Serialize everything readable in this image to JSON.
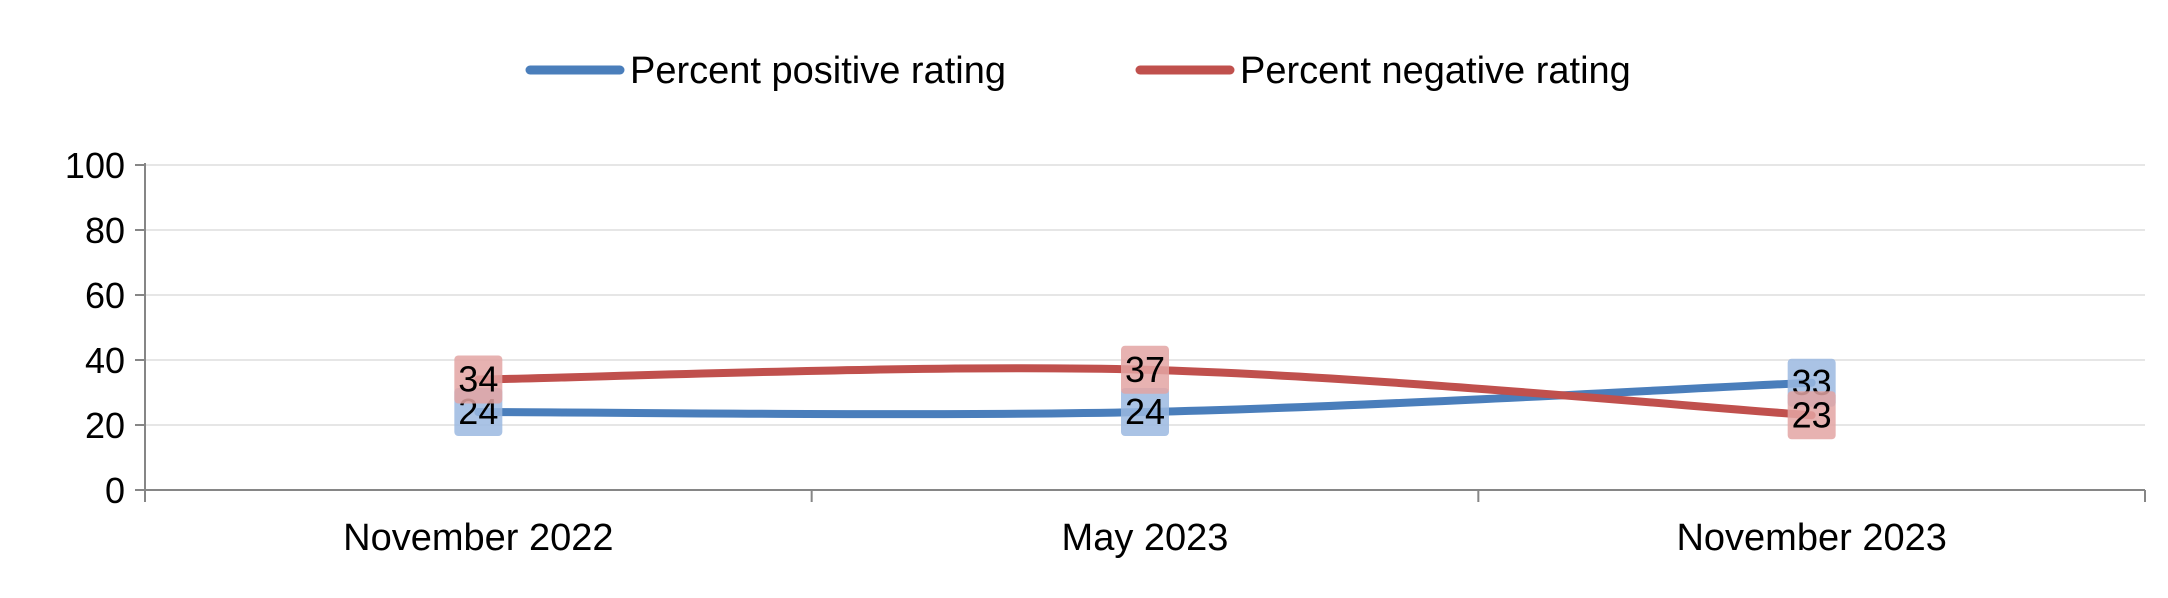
{
  "chart_data": {
    "type": "line",
    "title": "",
    "xlabel": "",
    "ylabel": "",
    "categories": [
      "November 2022",
      "May 2023",
      "November 2023"
    ],
    "ylim": [
      0,
      100
    ],
    "yticks": [
      0,
      20,
      40,
      60,
      80,
      100
    ],
    "grid": true,
    "legend_position": "top",
    "smooth_lines": true,
    "series": [
      {
        "name": "Percent positive rating",
        "values": [
          24,
          24,
          33
        ],
        "color": "#4a7ebb",
        "label_bg": "#9bb9e0"
      },
      {
        "name": "Percent negative rating",
        "values": [
          34,
          37,
          23
        ],
        "color": "#c0504d",
        "label_bg": "#e3a5a3"
      }
    ]
  }
}
